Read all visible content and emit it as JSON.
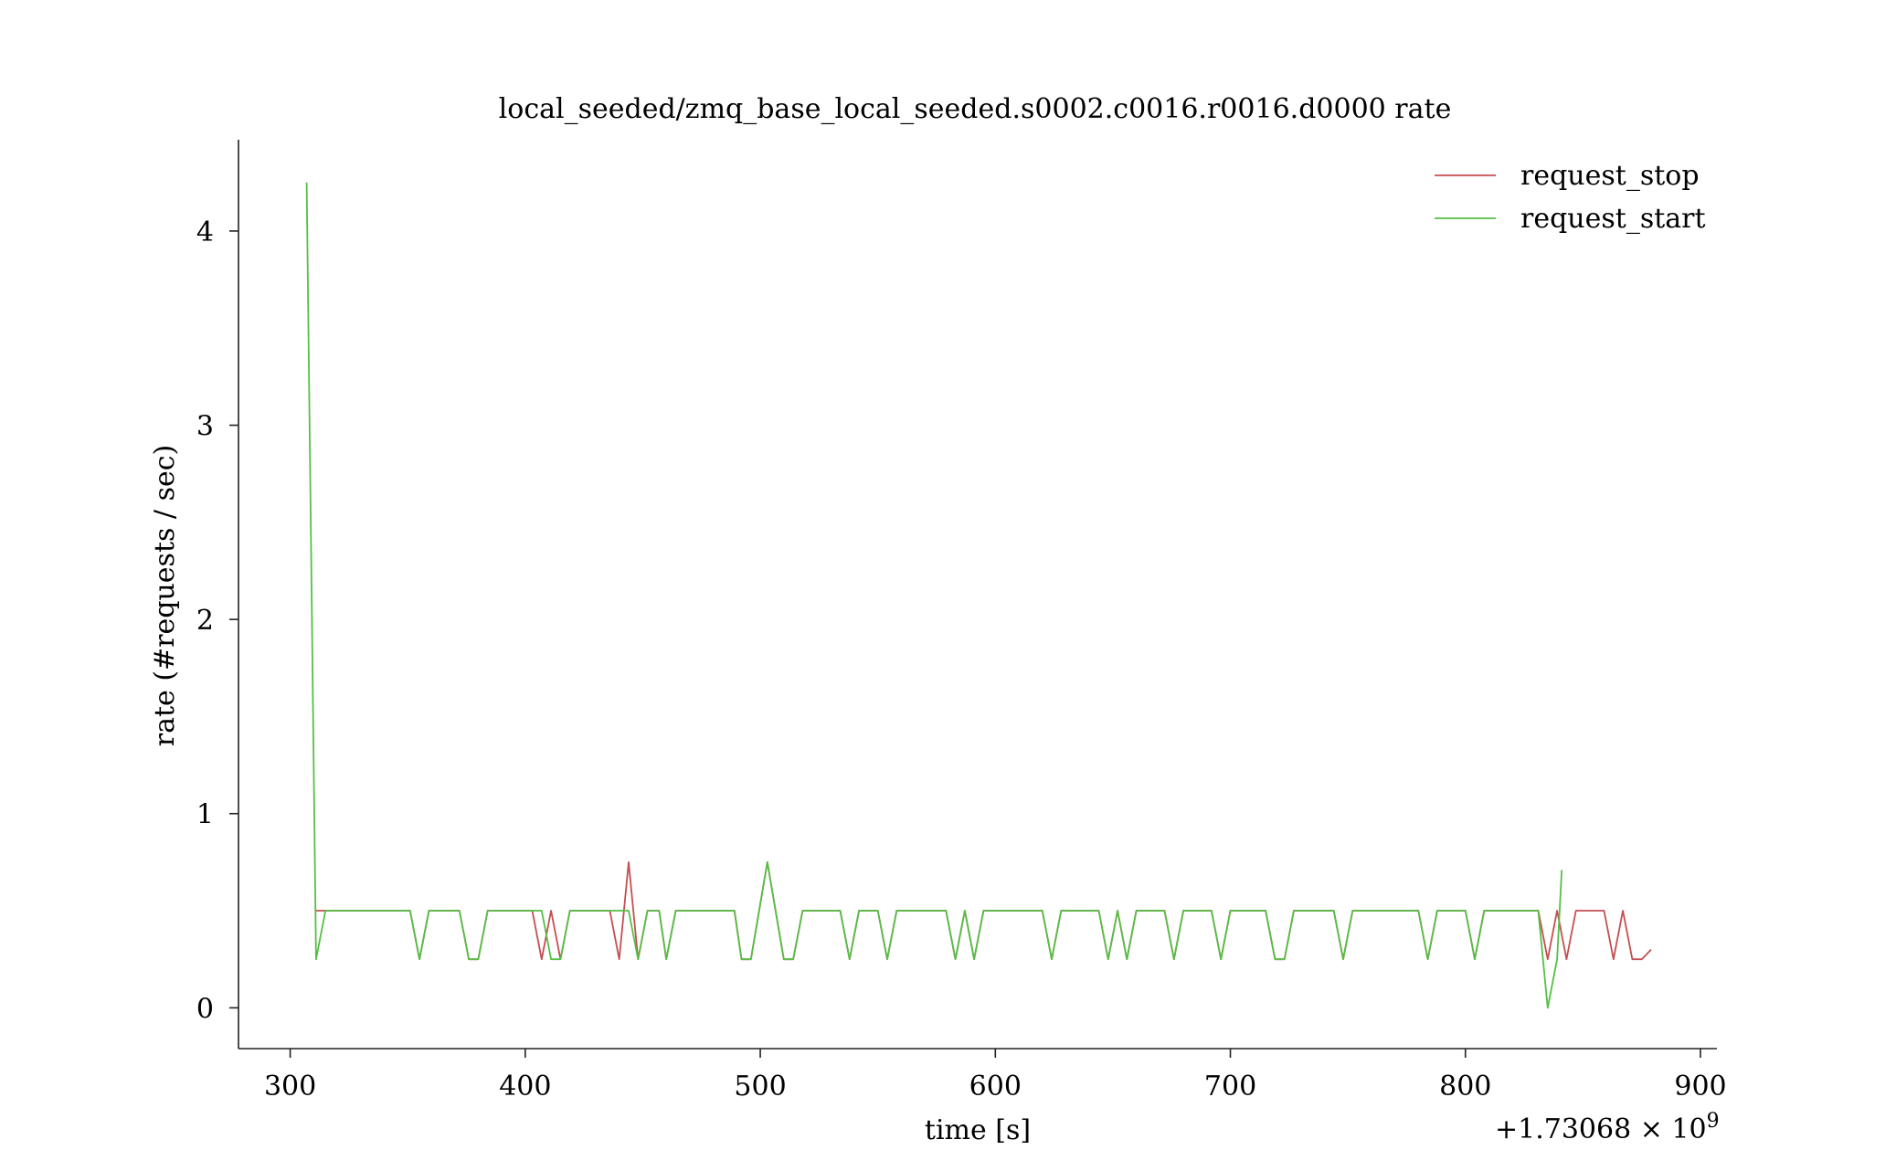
{
  "chart_data": {
    "type": "line",
    "title": "local_seeded/zmq_base_local_seeded.s0002.c0016.r0016.d0000 rate",
    "xlabel": "time [s]",
    "ylabel": "rate (#requests / sec)",
    "x_offset_label": "+1.73068 × 10",
    "x_offset_exponent": "9",
    "xlim": [
      278,
      907
    ],
    "ylim": [
      -0.21,
      4.47
    ],
    "xticks": [
      300,
      400,
      500,
      600,
      700,
      800,
      900
    ],
    "yticks": [
      0,
      1,
      2,
      3,
      4
    ],
    "legend_position": "top-right",
    "grid": false,
    "series": [
      {
        "name": "request_stop",
        "color": "#c44e52",
        "points": [
          [
            311,
            0.5
          ],
          [
            351,
            0.5
          ],
          [
            355,
            0.25
          ],
          [
            359,
            0.5
          ],
          [
            372,
            0.5
          ],
          [
            376,
            0.25
          ],
          [
            380,
            0.25
          ],
          [
            384,
            0.5
          ],
          [
            403,
            0.5
          ],
          [
            407,
            0.25
          ],
          [
            411,
            0.5
          ],
          [
            415,
            0.25
          ],
          [
            419,
            0.5
          ],
          [
            436,
            0.5
          ],
          [
            440,
            0.25
          ],
          [
            444,
            0.75
          ],
          [
            448,
            0.25
          ],
          [
            452,
            0.5
          ],
          [
            457,
            0.5
          ],
          [
            460,
            0.25
          ],
          [
            464,
            0.5
          ],
          [
            489,
            0.5
          ],
          [
            492,
            0.25
          ],
          [
            496,
            0.25
          ],
          [
            503,
            0.75
          ],
          [
            510,
            0.25
          ],
          [
            514,
            0.25
          ],
          [
            518,
            0.5
          ],
          [
            534,
            0.5
          ],
          [
            538,
            0.25
          ],
          [
            542,
            0.5
          ],
          [
            550,
            0.5
          ],
          [
            554,
            0.25
          ],
          [
            558,
            0.5
          ],
          [
            579,
            0.5
          ],
          [
            583,
            0.25
          ],
          [
            587,
            0.5
          ],
          [
            591,
            0.25
          ],
          [
            595,
            0.5
          ],
          [
            620,
            0.5
          ],
          [
            624,
            0.25
          ],
          [
            628,
            0.5
          ],
          [
            644,
            0.5
          ],
          [
            648,
            0.25
          ],
          [
            652,
            0.5
          ],
          [
            656,
            0.25
          ],
          [
            660,
            0.5
          ],
          [
            672,
            0.5
          ],
          [
            676,
            0.25
          ],
          [
            680,
            0.5
          ],
          [
            692,
            0.5
          ],
          [
            696,
            0.25
          ],
          [
            700,
            0.5
          ],
          [
            715,
            0.5
          ],
          [
            719,
            0.25
          ],
          [
            723,
            0.25
          ],
          [
            727,
            0.5
          ],
          [
            744,
            0.5
          ],
          [
            748,
            0.25
          ],
          [
            752,
            0.5
          ],
          [
            780,
            0.5
          ],
          [
            784,
            0.25
          ],
          [
            788,
            0.5
          ],
          [
            800,
            0.5
          ],
          [
            804,
            0.25
          ],
          [
            808,
            0.5
          ],
          [
            831,
            0.5
          ],
          [
            835,
            0.25
          ],
          [
            839,
            0.5
          ],
          [
            843,
            0.25
          ],
          [
            847,
            0.5
          ],
          [
            859,
            0.5
          ],
          [
            863,
            0.25
          ],
          [
            867,
            0.5
          ],
          [
            871,
            0.25
          ],
          [
            875,
            0.25
          ],
          [
            879,
            0.3
          ]
        ]
      },
      {
        "name": "request_start",
        "color": "#55bf45",
        "points": [
          [
            307,
            4.25
          ],
          [
            311,
            0.25
          ],
          [
            315,
            0.5
          ],
          [
            351,
            0.5
          ],
          [
            355,
            0.25
          ],
          [
            359,
            0.5
          ],
          [
            372,
            0.5
          ],
          [
            376,
            0.25
          ],
          [
            380,
            0.25
          ],
          [
            384,
            0.5
          ],
          [
            407,
            0.5
          ],
          [
            411,
            0.25
          ],
          [
            415,
            0.25
          ],
          [
            419,
            0.5
          ],
          [
            444,
            0.5
          ],
          [
            448,
            0.25
          ],
          [
            452,
            0.5
          ],
          [
            457,
            0.5
          ],
          [
            460,
            0.25
          ],
          [
            464,
            0.5
          ],
          [
            489,
            0.5
          ],
          [
            492,
            0.25
          ],
          [
            496,
            0.25
          ],
          [
            503,
            0.75
          ],
          [
            510,
            0.25
          ],
          [
            514,
            0.25
          ],
          [
            518,
            0.5
          ],
          [
            534,
            0.5
          ],
          [
            538,
            0.25
          ],
          [
            542,
            0.5
          ],
          [
            550,
            0.5
          ],
          [
            554,
            0.25
          ],
          [
            558,
            0.5
          ],
          [
            579,
            0.5
          ],
          [
            583,
            0.25
          ],
          [
            587,
            0.5
          ],
          [
            591,
            0.25
          ],
          [
            595,
            0.5
          ],
          [
            620,
            0.5
          ],
          [
            624,
            0.25
          ],
          [
            628,
            0.5
          ],
          [
            644,
            0.5
          ],
          [
            648,
            0.25
          ],
          [
            652,
            0.5
          ],
          [
            656,
            0.25
          ],
          [
            660,
            0.5
          ],
          [
            672,
            0.5
          ],
          [
            676,
            0.25
          ],
          [
            680,
            0.5
          ],
          [
            692,
            0.5
          ],
          [
            696,
            0.25
          ],
          [
            700,
            0.5
          ],
          [
            715,
            0.5
          ],
          [
            719,
            0.25
          ],
          [
            723,
            0.25
          ],
          [
            727,
            0.5
          ],
          [
            744,
            0.5
          ],
          [
            748,
            0.25
          ],
          [
            752,
            0.5
          ],
          [
            780,
            0.5
          ],
          [
            784,
            0.25
          ],
          [
            788,
            0.5
          ],
          [
            800,
            0.5
          ],
          [
            804,
            0.25
          ],
          [
            808,
            0.5
          ],
          [
            831,
            0.5
          ],
          [
            835,
            0.0
          ],
          [
            839,
            0.25
          ],
          [
            841,
            0.71
          ]
        ]
      }
    ]
  }
}
